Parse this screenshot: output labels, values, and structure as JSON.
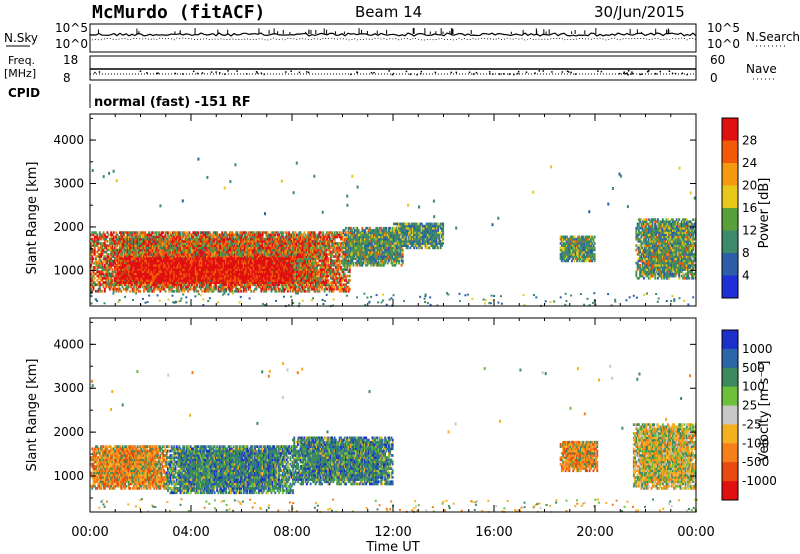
{
  "header": {
    "station": "McMurdo (fitACF)",
    "beam": "Beam 14",
    "date": "30/Jun/2015"
  },
  "top_panels": {
    "nsky_label": "N.Sky",
    "nsky_ticks": [
      "10^5",
      "10^0"
    ],
    "nsearch_label": "N.Search",
    "nsearch_ticks": [
      "10^5",
      "10^0"
    ],
    "freq_label_1": "Freq.",
    "freq_label_2": "[MHz]",
    "freq_ticks": [
      "18",
      "8"
    ],
    "nave_label": "Nave",
    "nave_ticks": [
      "60",
      "0"
    ],
    "cpid_label": "CPID",
    "cpid_value": "normal (fast) -151 RF"
  },
  "chart_data": [
    {
      "type": "heatmap",
      "name": "power-panel",
      "ylabel": "Slant Range [km]",
      "yticks": [
        "1000",
        "2000",
        "3000",
        "4000"
      ],
      "ylim": [
        180,
        4600
      ],
      "xlim": [
        0,
        24
      ],
      "colorbar_label": "Power [dB]",
      "colorbar_ticks": [
        "4",
        "8",
        "12",
        "16",
        "20",
        "24",
        "28"
      ],
      "colors": [
        "#1f2fd8",
        "#2c5fa8",
        "#3c8a6a",
        "#5aa03a",
        "#e8c81a",
        "#f59a10",
        "#f25a0a",
        "#e01010"
      ],
      "regions": [
        {
          "t": [
            0.0,
            10.3
          ],
          "r": [
            500,
            1900
          ],
          "level": "high"
        },
        {
          "t": [
            1.0,
            8.0
          ],
          "r": [
            700,
            1300
          ],
          "level": "max"
        },
        {
          "t": [
            10.0,
            12.4
          ],
          "r": [
            1100,
            2000
          ],
          "level": "mid"
        },
        {
          "t": [
            12.0,
            14.0
          ],
          "r": [
            1500,
            2100
          ],
          "level": "low"
        },
        {
          "t": [
            18.6,
            20.0
          ],
          "r": [
            1200,
            1800
          ],
          "level": "mid"
        },
        {
          "t": [
            21.6,
            24.0
          ],
          "r": [
            800,
            2200
          ],
          "level": "mid"
        }
      ]
    },
    {
      "type": "heatmap",
      "name": "velocity-panel",
      "ylabel": "Slant Range [km]",
      "yticks": [
        "1000",
        "2000",
        "3000",
        "4000"
      ],
      "ylim": [
        180,
        4600
      ],
      "xlim": [
        0,
        24
      ],
      "colorbar_label": "Velocity [m s⁻¹]",
      "colorbar_ticks": [
        "1000",
        "500",
        "100",
        "25",
        "-25",
        "-100",
        "-500",
        "-1000"
      ],
      "colors": [
        "#1c2fc8",
        "#2a66a8",
        "#3c8a5e",
        "#6cc03a",
        "#c8c8c8",
        "#f5b020",
        "#f5801a",
        "#e84a10",
        "#e01010"
      ],
      "regions": [
        {
          "t": [
            0.0,
            3.0
          ],
          "r": [
            700,
            1700
          ],
          "level": "negative"
        },
        {
          "t": [
            3.0,
            8.0
          ],
          "r": [
            600,
            1700
          ],
          "level": "positive"
        },
        {
          "t": [
            8.0,
            12.0
          ],
          "r": [
            800,
            1900
          ],
          "level": "positive"
        },
        {
          "t": [
            18.6,
            20.1
          ],
          "r": [
            1100,
            1800
          ],
          "level": "negative"
        },
        {
          "t": [
            21.5,
            24.0
          ],
          "r": [
            700,
            2200
          ],
          "level": "mixed"
        }
      ]
    }
  ],
  "x_axis": {
    "ticks": [
      "00:00",
      "04:00",
      "08:00",
      "12:00",
      "16:00",
      "20:00",
      "00:00"
    ],
    "label": "Time UT"
  }
}
